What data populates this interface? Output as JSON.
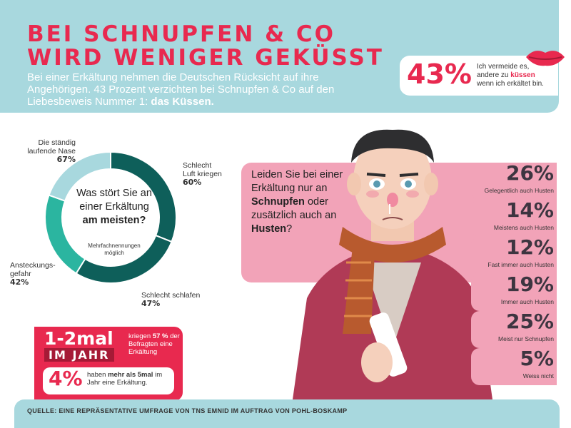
{
  "header": {
    "title_line1": "BEI SCHNUPFEN & CO",
    "title_line2": "WIRD WENIGER GEKÜSST",
    "intro_text": "Bei einer Erkältung nehmen die Deutschen Rücksicht auf ihre Angehörigen. 43 Prozent verzichten bei Schnupfen & Co auf den Liebesbeweis Nummer 1: ",
    "intro_bold": "das Küssen."
  },
  "kiss_stat": {
    "percent": "43%",
    "text_before": "Ich vermeide es, andere zu ",
    "text_bold": "küssen",
    "text_after": " wenn ich erkältet bin.",
    "icon": "lips-icon"
  },
  "donut": {
    "question_line1": "Was stört Sie an einer Erkältung",
    "question_bold": "am meisten?",
    "subtext": "Mehrfachnennungen möglich",
    "segments": [
      {
        "label": "Die ständig laufende Nase",
        "value": "67%",
        "fraction": 0.67,
        "color": "#0e5f5a"
      },
      {
        "label": "Schlecht Luft kriegen",
        "value": "60%",
        "fraction": 0.6,
        "color": "#0e5f5a"
      },
      {
        "label": "Schlecht schlafen",
        "value": "47%",
        "fraction": 0.47,
        "color": "#2bb5a0"
      },
      {
        "label": "Ansteckungs-gefahr",
        "value": "42%",
        "fraction": 0.42,
        "color": "#a8d8de"
      }
    ]
  },
  "cold_question": {
    "line1": "Leiden Sie bei einer Erkältung nur an ",
    "bold1": "Schnupfen",
    "line2": " oder zusätzlich auch an ",
    "bold2": "Husten",
    "line3": "?"
  },
  "stats": [
    {
      "percent": "26%",
      "label": "Gelegentlich auch Husten"
    },
    {
      "percent": "14%",
      "label": "Meistens auch Husten"
    },
    {
      "percent": "12%",
      "label": "Fast immer auch Husten"
    },
    {
      "percent": "19%",
      "label": "Immer auch Husten"
    },
    {
      "percent": "25%",
      "label": "Meist nur Schnupfen"
    },
    {
      "percent": "5%",
      "label": "Weiss nicht"
    }
  ],
  "frequency": {
    "big": "1-2mal",
    "jahr": "IM JAHR",
    "side_text_pre": "kriegen ",
    "side_bold": "57 %",
    "side_text_post": " der Befragten eine Erkältung",
    "pct": "4%",
    "text_pre": "haben ",
    "text_bold": "mehr als 5mal",
    "text_post": " im Jahr eine Erkältung."
  },
  "footer": {
    "source": "QUELLE: EINE REPRÄSENTATIVE UMFRAGE VON TNS EMNID IM AUFTRAG VON POHL-BOSKAMP"
  },
  "colors": {
    "red": "#e8294f",
    "teal_light": "#a8d8de",
    "pink": "#f2a3b8",
    "dark_teal": "#0e5f5a",
    "mid_teal": "#2bb5a0"
  }
}
